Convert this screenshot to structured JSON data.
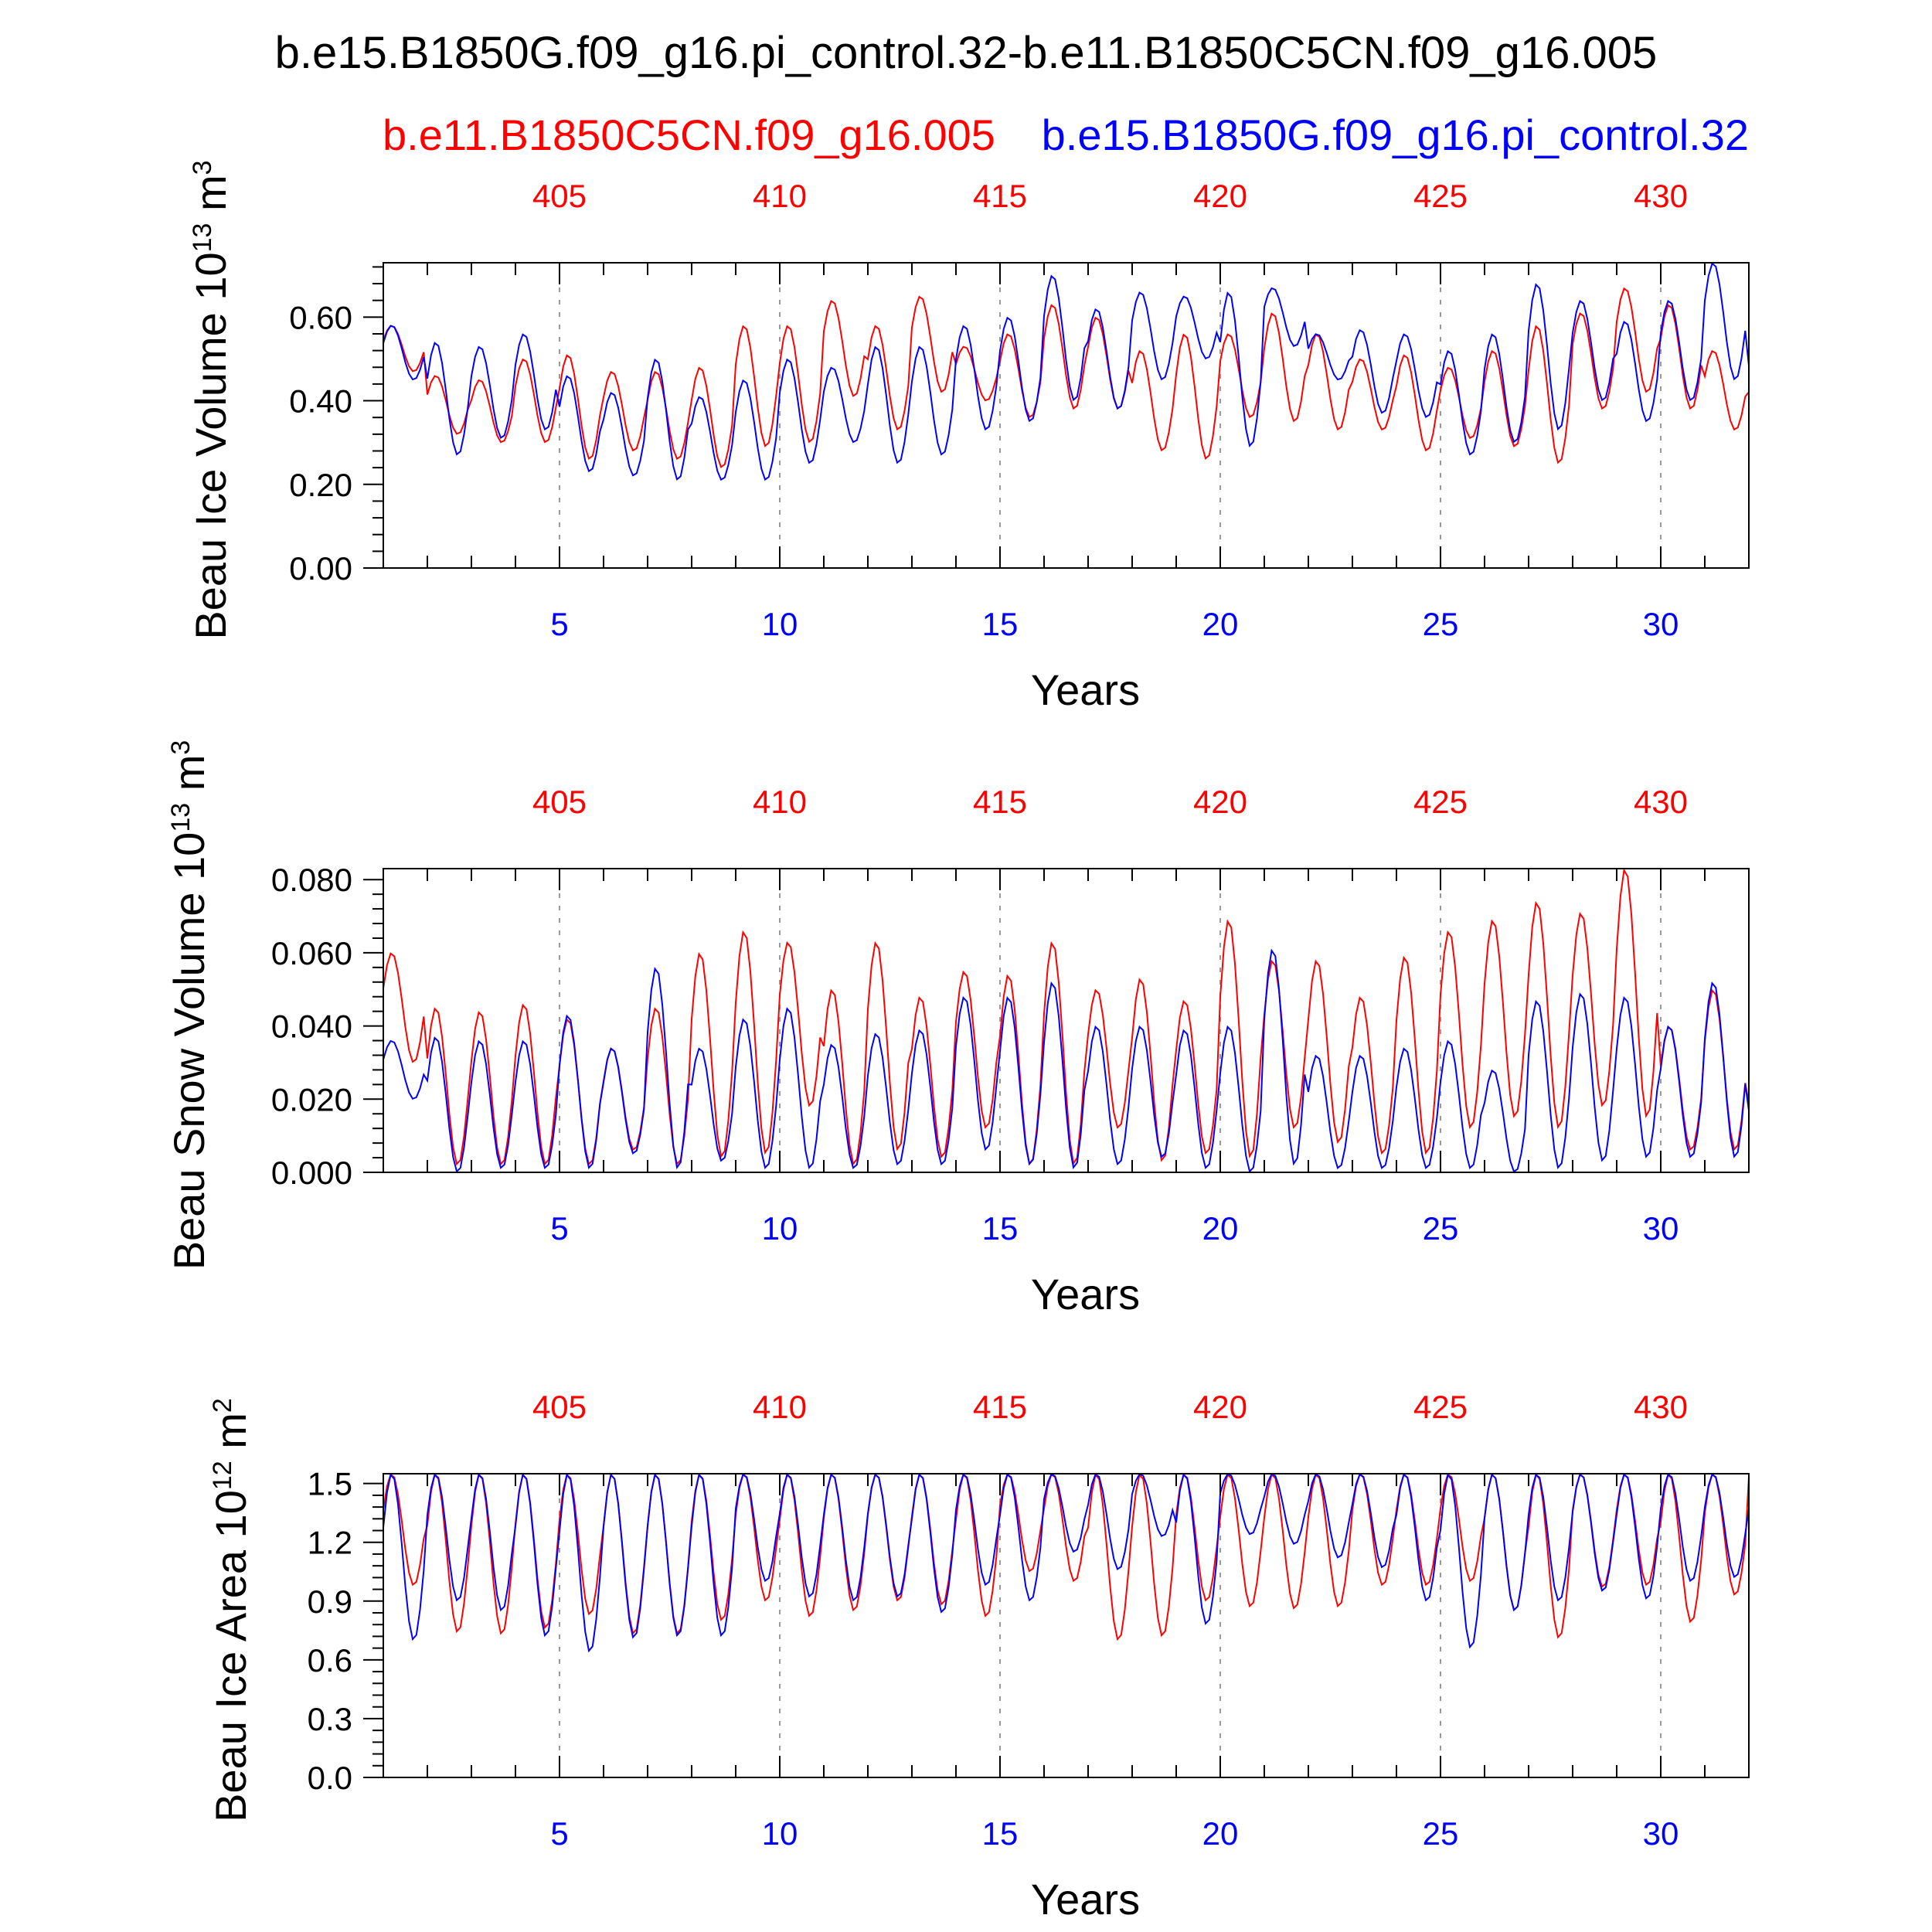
{
  "title": "b.e15.B1850G.f09_g16.pi_control.32-b.e11.B1850C5CN.f09_g16.005",
  "legend": {
    "case_red": "b.e11.B1850C5CN.f09_g16.005",
    "case_blue": "b.e15.B1850G.f09_g16.pi_control.32"
  },
  "colors": {
    "red": "#ff0000",
    "blue": "#0000ff",
    "axis": "#000000",
    "grid": "#999999"
  },
  "chart_data": [
    {
      "type": "line",
      "ylabel": "Beau Ice Volume 10",
      "ylabel_exp": "13",
      "ylabel_unit": " m",
      "ylabel_unit_exp": "3",
      "xlabel": "Years",
      "xlim": [
        1,
        32
      ],
      "ylim": [
        0,
        0.73
      ],
      "yticks": [
        0,
        0.2,
        0.4,
        0.6
      ],
      "ytick_labels": [
        "0.00",
        "0.20",
        "0.40",
        "0.60"
      ],
      "xticks": [
        5,
        10,
        15,
        20,
        25,
        30
      ],
      "xtick_labels": [
        "5",
        "10",
        "15",
        "20",
        "25",
        "30"
      ],
      "top_ticks": [
        5,
        10,
        15,
        20,
        25,
        30
      ],
      "top_tick_labels": [
        "405",
        "410",
        "415",
        "420",
        "425",
        "430"
      ],
      "series": [
        {
          "name": "b.e11.B1850C5CN.f09_g16.005",
          "color": "#ff0000",
          "annual": {
            "max": [
              0.58,
              0.46,
              0.45,
              0.5,
              0.51,
              0.47,
              0.47,
              0.48,
              0.58,
              0.58,
              0.64,
              0.58,
              0.65,
              0.53,
              0.56,
              0.63,
              0.6,
              0.52,
              0.56,
              0.56,
              0.61,
              0.56,
              0.5,
              0.51,
              0.48,
              0.52,
              0.58,
              0.61,
              0.67,
              0.63,
              0.52,
              0.45
            ],
            "min": [
              0.47,
              0.32,
              0.3,
              0.3,
              0.26,
              0.28,
              0.26,
              0.24,
              0.29,
              0.3,
              0.41,
              0.33,
              0.42,
              0.4,
              0.36,
              0.38,
              0.38,
              0.28,
              0.26,
              0.36,
              0.35,
              0.33,
              0.33,
              0.28,
              0.31,
              0.29,
              0.25,
              0.38,
              0.42,
              0.38,
              0.33,
              0.36
            ]
          }
        },
        {
          "name": "b.e15.B1850G.f09_g16.pi_control.32",
          "color": "#0000ff",
          "annual": {
            "max": [
              0.58,
              0.54,
              0.53,
              0.56,
              0.46,
              0.42,
              0.5,
              0.41,
              0.45,
              0.5,
              0.48,
              0.53,
              0.53,
              0.58,
              0.6,
              0.7,
              0.62,
              0.66,
              0.65,
              0.66,
              0.67,
              0.56,
              0.57,
              0.56,
              0.52,
              0.56,
              0.68,
              0.64,
              0.59,
              0.64,
              0.73,
              0.5
            ],
            "min": [
              0.45,
              0.27,
              0.31,
              0.33,
              0.23,
              0.22,
              0.21,
              0.21,
              0.21,
              0.25,
              0.3,
              0.25,
              0.27,
              0.33,
              0.35,
              0.4,
              0.38,
              0.45,
              0.5,
              0.29,
              0.53,
              0.45,
              0.37,
              0.36,
              0.27,
              0.3,
              0.33,
              0.4,
              0.35,
              0.4,
              0.45,
              0.45
            ]
          }
        }
      ]
    },
    {
      "type": "line",
      "ylabel": "Beau Snow Volume 10",
      "ylabel_exp": "13",
      "ylabel_unit": " m",
      "ylabel_unit_exp": "3",
      "xlabel": "Years",
      "xlim": [
        1,
        32
      ],
      "ylim": [
        0,
        0.083
      ],
      "yticks": [
        0,
        0.02,
        0.04,
        0.06,
        0.08
      ],
      "ytick_labels": [
        "0.000",
        "0.020",
        "0.040",
        "0.060",
        "0.080"
      ],
      "xticks": [
        5,
        10,
        15,
        20,
        25,
        30
      ],
      "xtick_labels": [
        "5",
        "10",
        "15",
        "20",
        "25",
        "30"
      ],
      "top_ticks": [
        5,
        10,
        15,
        20,
        25,
        30
      ],
      "top_tick_labels": [
        "405",
        "410",
        "415",
        "420",
        "425",
        "430"
      ],
      "series": [
        {
          "name": "b.e11.B1850C5CN.f09_g16.005",
          "color": "#ff0000",
          "annual": {
            "max": [
              0.06,
              0.045,
              0.044,
              0.046,
              0.042,
              0.034,
              0.045,
              0.06,
              0.066,
              0.063,
              0.05,
              0.063,
              0.048,
              0.055,
              0.054,
              0.063,
              0.05,
              0.053,
              0.047,
              0.069,
              0.058,
              0.058,
              0.048,
              0.059,
              0.066,
              0.069,
              0.074,
              0.071,
              0.083,
              0.04,
              0.05,
              0.024
            ],
            "min": [
              0.03,
              0.002,
              0.002,
              0.002,
              0.002,
              0.006,
              0.002,
              0.004,
              0.005,
              0.018,
              0.002,
              0.006,
              0.004,
              0.012,
              0.002,
              0.002,
              0.012,
              0.003,
              0.005,
              0.004,
              0.012,
              0.008,
              0.005,
              0.005,
              0.012,
              0.015,
              0.012,
              0.018,
              0.015,
              0.006,
              0.006,
              0.008
            ]
          }
        },
        {
          "name": "b.e15.B1850G.f09_g16.pi_control.32",
          "color": "#0000ff",
          "annual": {
            "max": [
              0.036,
              0.037,
              0.036,
              0.036,
              0.043,
              0.034,
              0.056,
              0.034,
              0.042,
              0.045,
              0.035,
              0.038,
              0.039,
              0.048,
              0.048,
              0.052,
              0.04,
              0.04,
              0.039,
              0.04,
              0.061,
              0.032,
              0.032,
              0.034,
              0.036,
              0.028,
              0.047,
              0.049,
              0.048,
              0.04,
              0.052,
              0.024
            ],
            "min": [
              0.02,
              0.0,
              0.001,
              0.001,
              0.001,
              0.005,
              0.001,
              0.003,
              0.001,
              0.001,
              0.001,
              0.002,
              0.002,
              0.006,
              0.002,
              0.001,
              0.002,
              0.004,
              0.001,
              0.0,
              0.002,
              0.001,
              0.001,
              0.001,
              0.001,
              0.0,
              0.001,
              0.003,
              0.004,
              0.004,
              0.004,
              0.002
            ]
          }
        }
      ]
    },
    {
      "type": "line",
      "ylabel": "Beau Ice Area 10",
      "ylabel_exp": "12",
      "ylabel_unit": " m",
      "ylabel_unit_exp": "2",
      "xlabel": "Years",
      "xlim": [
        1,
        32
      ],
      "ylim": [
        0,
        1.55
      ],
      "yticks": [
        0,
        0.3,
        0.6,
        0.9,
        1.2,
        1.5
      ],
      "ytick_labels": [
        "0.0",
        "0.3",
        "0.6",
        "0.9",
        "1.2",
        "1.5"
      ],
      "xticks": [
        5,
        10,
        15,
        20,
        25,
        30
      ],
      "xtick_labels": [
        "5",
        "10",
        "15",
        "20",
        "25",
        "30"
      ],
      "top_ticks": [
        5,
        10,
        15,
        20,
        25,
        30
      ],
      "top_tick_labels": [
        "405",
        "410",
        "415",
        "420",
        "425",
        "430"
      ],
      "series": [
        {
          "name": "b.e11.B1850C5CN.f09_g16.005",
          "color": "#ff0000",
          "annual": {
            "max": [
              1.55,
              1.55,
              1.55,
              1.55,
              1.55,
              1.55,
              1.55,
              1.55,
              1.55,
              1.55,
              1.55,
              1.55,
              1.55,
              1.55,
              1.55,
              1.55,
              1.55,
              1.55,
              1.55,
              1.55,
              1.55,
              1.55,
              1.55,
              1.55,
              1.55,
              1.55,
              1.55,
              1.55,
              1.55,
              1.55,
              1.55,
              1.55
            ],
            "min": [
              0.98,
              0.74,
              0.73,
              0.76,
              0.83,
              0.73,
              0.73,
              0.8,
              0.9,
              0.82,
              0.85,
              0.9,
              0.88,
              0.82,
              1.05,
              1.0,
              0.7,
              0.72,
              0.9,
              0.87,
              0.86,
              0.87,
              0.98,
              0.98,
              1.0,
              0.85,
              0.71,
              0.97,
              0.98,
              0.79,
              0.93,
              1.5
            ]
          }
        },
        {
          "name": "b.e15.B1850G.f09_g16.pi_control.32",
          "color": "#0000ff",
          "annual": {
            "max": [
              1.55,
              1.55,
              1.55,
              1.55,
              1.55,
              1.55,
              1.55,
              1.55,
              1.55,
              1.55,
              1.55,
              1.55,
              1.55,
              1.55,
              1.55,
              1.55,
              1.55,
              1.55,
              1.55,
              1.55,
              1.55,
              1.55,
              1.55,
              1.55,
              1.55,
              1.55,
              1.55,
              1.55,
              1.55,
              1.55,
              1.55,
              1.55
            ],
            "min": [
              0.7,
              0.9,
              0.85,
              0.72,
              0.64,
              0.71,
              0.72,
              0.72,
              1.0,
              0.92,
              0.9,
              0.92,
              0.84,
              0.98,
              0.9,
              1.15,
              1.06,
              1.23,
              0.78,
              1.24,
              1.19,
              1.12,
              1.07,
              0.9,
              0.66,
              0.85,
              0.9,
              0.95,
              0.91,
              1.0,
              1.02,
              1.0
            ]
          }
        }
      ]
    }
  ]
}
